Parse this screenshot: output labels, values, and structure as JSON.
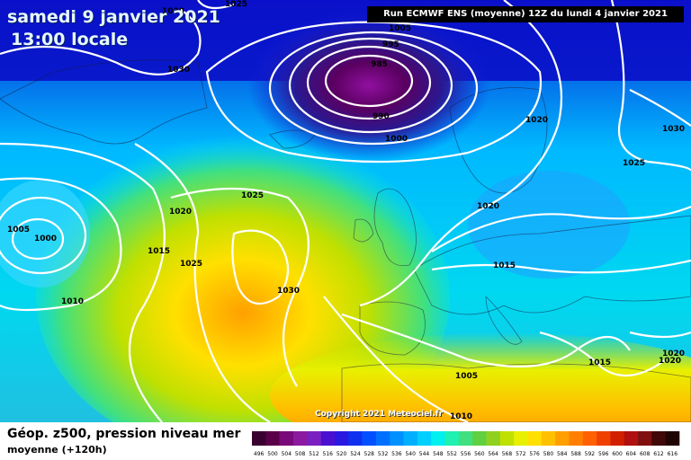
{
  "header": {
    "date": "samedi 9 janvier 2021",
    "time": "13:00 locale",
    "run": "Run ECMWF ENS (moyenne) 12Z du lundi 4 janvier 2021"
  },
  "copyright": "Copyright 2021 Meteociel.fr",
  "legend": {
    "title": "Géop. z500, pression niveau mer",
    "subtitle": "moyenne  (+120h)",
    "scale": [
      "496",
      "500",
      "504",
      "508",
      "512",
      "516",
      "520",
      "524",
      "528",
      "532",
      "536",
      "540",
      "544",
      "548",
      "552",
      "556",
      "560",
      "564",
      "568",
      "572",
      "576",
      "580",
      "584",
      "588",
      "592",
      "596",
      "600",
      "604",
      "608",
      "612",
      "616"
    ],
    "colors": [
      "#3a0030",
      "#5a0048",
      "#7a0a7a",
      "#8c1aa0",
      "#7a20c0",
      "#4a10d0",
      "#2a18e0",
      "#1030f0",
      "#0050ff",
      "#0070ff",
      "#0090ff",
      "#00b0ff",
      "#00d0ff",
      "#00f0f0",
      "#20f0b0",
      "#40e080",
      "#60d040",
      "#90d020",
      "#c0e000",
      "#e8f000",
      "#ffe000",
      "#ffc000",
      "#ffa000",
      "#ff8000",
      "#ff6000",
      "#f04000",
      "#d02000",
      "#b01010",
      "#801010",
      "#400808",
      "#200404"
    ]
  },
  "isobars": [
    {
      "value": "1025",
      "label": "1025"
    },
    {
      "value": "1030",
      "label": "1030"
    },
    {
      "value": "1030b",
      "label": "1030"
    },
    {
      "value": "1005",
      "label": "1005"
    },
    {
      "value": "995",
      "label": "995"
    },
    {
      "value": "985",
      "label": "985"
    },
    {
      "value": "990",
      "label": "990"
    },
    {
      "value": "1000",
      "label": "1000"
    },
    {
      "value": "1020a",
      "label": "1020"
    },
    {
      "value": "1030c",
      "label": "1030"
    },
    {
      "value": "1025b",
      "label": "1025"
    },
    {
      "value": "1025c",
      "label": "1025"
    },
    {
      "value": "1020b",
      "label": "1020"
    },
    {
      "value": "1020c",
      "label": "1020"
    },
    {
      "value": "1005b",
      "label": "1005"
    },
    {
      "value": "1000b",
      "label": "1000"
    },
    {
      "value": "1015a",
      "label": "1015"
    },
    {
      "value": "1025d",
      "label": "1025"
    },
    {
      "value": "1015b",
      "label": "1015"
    },
    {
      "value": "1030d",
      "label": "1030"
    },
    {
      "value": "1010a",
      "label": "1010"
    },
    {
      "value": "1005c",
      "label": "1005"
    },
    {
      "value": "1010b",
      "label": "1010"
    },
    {
      "value": "1015c",
      "label": "1015"
    },
    {
      "value": "1020d",
      "label": "1020"
    },
    {
      "value": "1020e",
      "label": "1020"
    }
  ]
}
